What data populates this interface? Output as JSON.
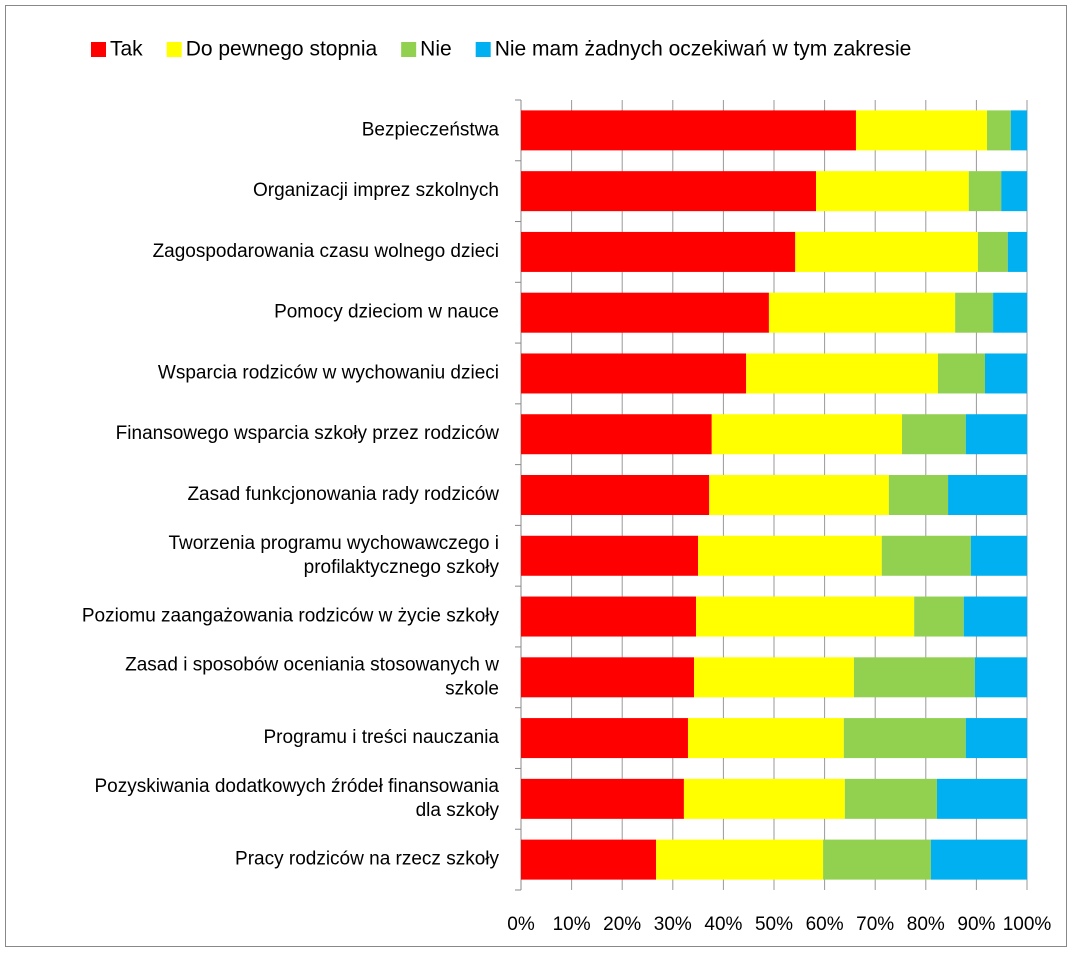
{
  "chart_data": {
    "type": "stacked-barh",
    "categories": [
      "Bezpieczeństwa",
      "Organizacji imprez szkolnych",
      "Zagospodarowania czasu wolnego dzieci",
      "Pomocy dzieciom w nauce",
      "Wsparcia rodziców w wychowaniu dzieci",
      "Finansowego wsparcia szkoły przez rodziców",
      "Zasad funkcjonowania rady rodziców",
      "Tworzenia programu wychowawczego i\nprofilaktycznego szkoły",
      "Poziomu zaangażowania rodziców w życie szkoły",
      "Zasad i sposobów oceniania stosowanych w\nszkole",
      "Programu i treści nauczania",
      "Pozyskiwania dodatkowych źródeł finansowania\ndla szkoły",
      "Pracy rodziców na rzecz szkoły"
    ],
    "series": [
      {
        "name": "Tak",
        "color": "#ff0000",
        "values": [
          66.2,
          58.3,
          54.2,
          49.0,
          44.5,
          37.7,
          37.2,
          35.0,
          34.6,
          34.2,
          33.0,
          32.2,
          26.7
        ]
      },
      {
        "name": "Do pewnego stopnia",
        "color": "#ffff00",
        "values": [
          25.9,
          30.2,
          36.1,
          36.8,
          37.9,
          37.6,
          35.5,
          36.3,
          43.1,
          31.6,
          30.8,
          31.8,
          33.0
        ]
      },
      {
        "name": "Nie",
        "color": "#92d050",
        "values": [
          4.7,
          6.4,
          5.9,
          7.5,
          9.3,
          12.6,
          11.7,
          17.6,
          9.8,
          23.9,
          24.1,
          18.2,
          21.3
        ]
      },
      {
        "name": "Nie mam żadnych oczekiwań w tym zakresie",
        "color": "#00b0f0",
        "values": [
          3.2,
          5.1,
          3.8,
          6.7,
          8.3,
          12.1,
          15.6,
          11.1,
          12.5,
          10.3,
          12.1,
          17.8,
          19.0
        ]
      }
    ],
    "xlim": [
      0,
      100
    ],
    "xticks": [
      {
        "value": 0,
        "label": "0%"
      },
      {
        "value": 10,
        "label": "10%"
      },
      {
        "value": 20,
        "label": "20%"
      },
      {
        "value": 30,
        "label": "30%"
      },
      {
        "value": 40,
        "label": "40%"
      },
      {
        "value": 50,
        "label": "50%"
      },
      {
        "value": 60,
        "label": "60%"
      },
      {
        "value": 70,
        "label": "70%"
      },
      {
        "value": 80,
        "label": "80%"
      },
      {
        "value": 90,
        "label": "90%"
      },
      {
        "value": 100,
        "label": "100%"
      }
    ],
    "grid": true,
    "legend": "top"
  }
}
